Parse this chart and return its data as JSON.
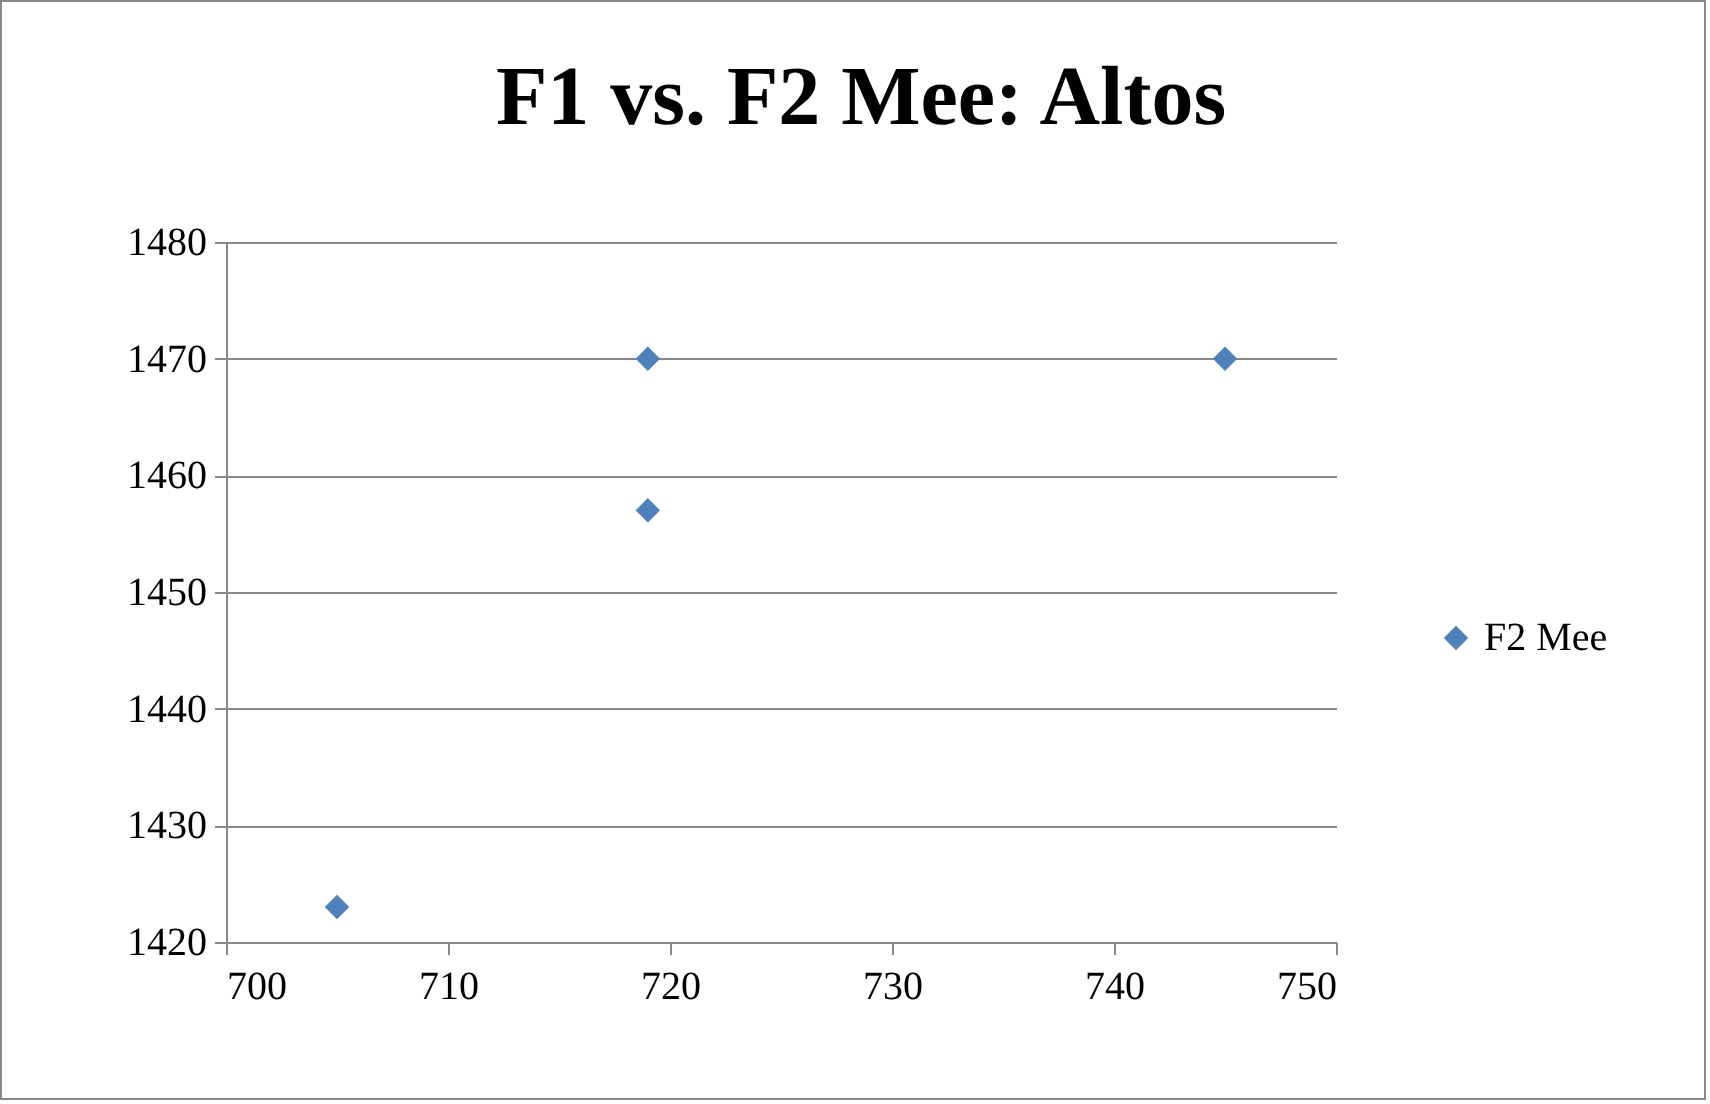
{
  "chart_data": {
    "type": "scatter",
    "title": "F1 vs. F2 Mee: Altos",
    "x": [
      705,
      719,
      719,
      745
    ],
    "series": [
      {
        "name": "F2 Mee",
        "color": "#4f81bd",
        "values": [
          1423,
          1470,
          1457,
          1470
        ]
      }
    ],
    "xlim": [
      700,
      750
    ],
    "xticks": [
      700,
      710,
      720,
      730,
      740,
      750
    ],
    "ylim": [
      1420,
      1480
    ],
    "yticks": [
      1420,
      1430,
      1440,
      1450,
      1460,
      1470,
      1480
    ],
    "grid": "y",
    "legend": "right",
    "marker": "diamond"
  }
}
